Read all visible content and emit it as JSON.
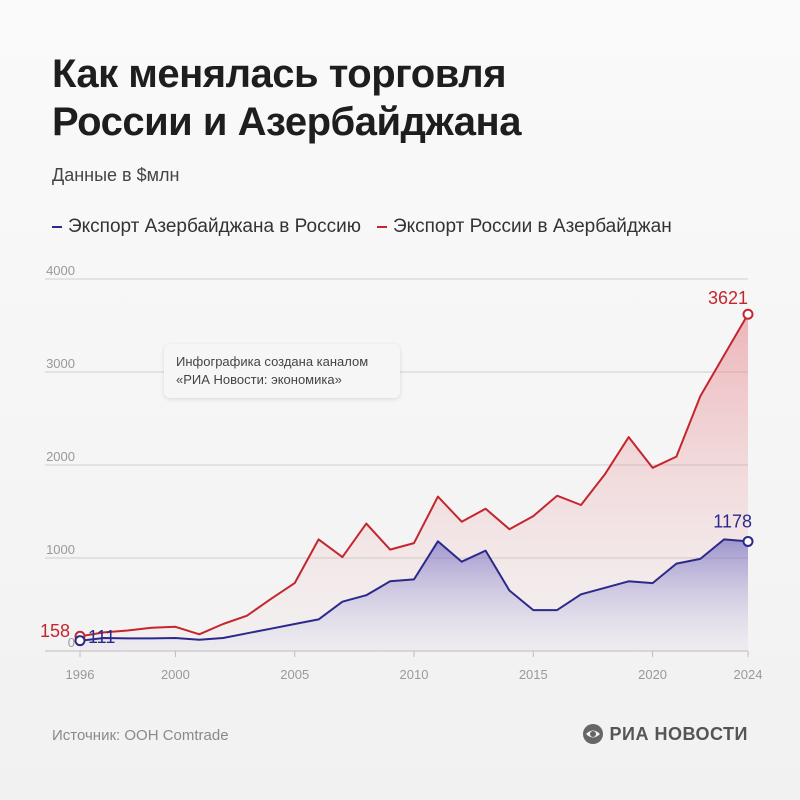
{
  "header": {
    "title_line1": "Как менялась торговля",
    "title_line2": "России и Азербайджана",
    "subtitle": "Данные в $млн"
  },
  "legend": [
    {
      "label": "Экспорт Азербайджана в Россию",
      "color": "#2b2a8c"
    },
    {
      "label": "Экспорт России в Азербайджан",
      "color": "#c4262e"
    }
  ],
  "note": {
    "line1": "Инфографика создана каналом",
    "line2": "«РИА Новости: экономика»"
  },
  "footer": {
    "source": "Источник: ООН Comtrade",
    "brand": "РИА НОВОСТИ"
  },
  "colors": {
    "azerbaijan_export": "#2b2a8c",
    "russia_export": "#c4262e",
    "grid": "#cfcfcf"
  },
  "chart_data": {
    "type": "area",
    "title": "Как менялась торговля России и Азербайджана",
    "subtitle": "Данные в $млн",
    "x": [
      1996,
      1997,
      1998,
      1999,
      2000,
      2001,
      2002,
      2003,
      2004,
      2005,
      2006,
      2007,
      2008,
      2009,
      2010,
      2011,
      2012,
      2013,
      2014,
      2015,
      2016,
      2017,
      2018,
      2019,
      2020,
      2021,
      2022,
      2023,
      2024
    ],
    "series": [
      {
        "name": "Экспорт Азербайджана в Россию",
        "color": "#2b2a8c",
        "values": [
          111,
          140,
          135,
          135,
          140,
          120,
          140,
          190,
          240,
          290,
          340,
          530,
          600,
          750,
          770,
          1180,
          960,
          1080,
          650,
          440,
          440,
          610,
          680,
          750,
          730,
          940,
          990,
          1200,
          1178
        ]
      },
      {
        "name": "Экспорт России в Азербайджан",
        "color": "#c4262e",
        "values": [
          158,
          200,
          220,
          250,
          260,
          180,
          290,
          380,
          560,
          730,
          1200,
          1010,
          1370,
          1090,
          1160,
          1660,
          1390,
          1530,
          1310,
          1450,
          1670,
          1570,
          1900,
          2300,
          1970,
          2090,
          2740,
          3180,
          3621
        ]
      }
    ],
    "xticks": [
      1996,
      2000,
      2005,
      2010,
      2015,
      2020,
      2024
    ],
    "yticks": [
      0,
      1000,
      2000,
      3000,
      4000
    ],
    "ylim": [
      0,
      4000
    ],
    "xlim": [
      1996,
      2024
    ],
    "end_labels": {
      "first_azerbaijan": "111",
      "first_russia": "158",
      "last_azerbaijan": "1178",
      "last_russia": "3621"
    },
    "grid": true,
    "legend_position": "top-left"
  }
}
